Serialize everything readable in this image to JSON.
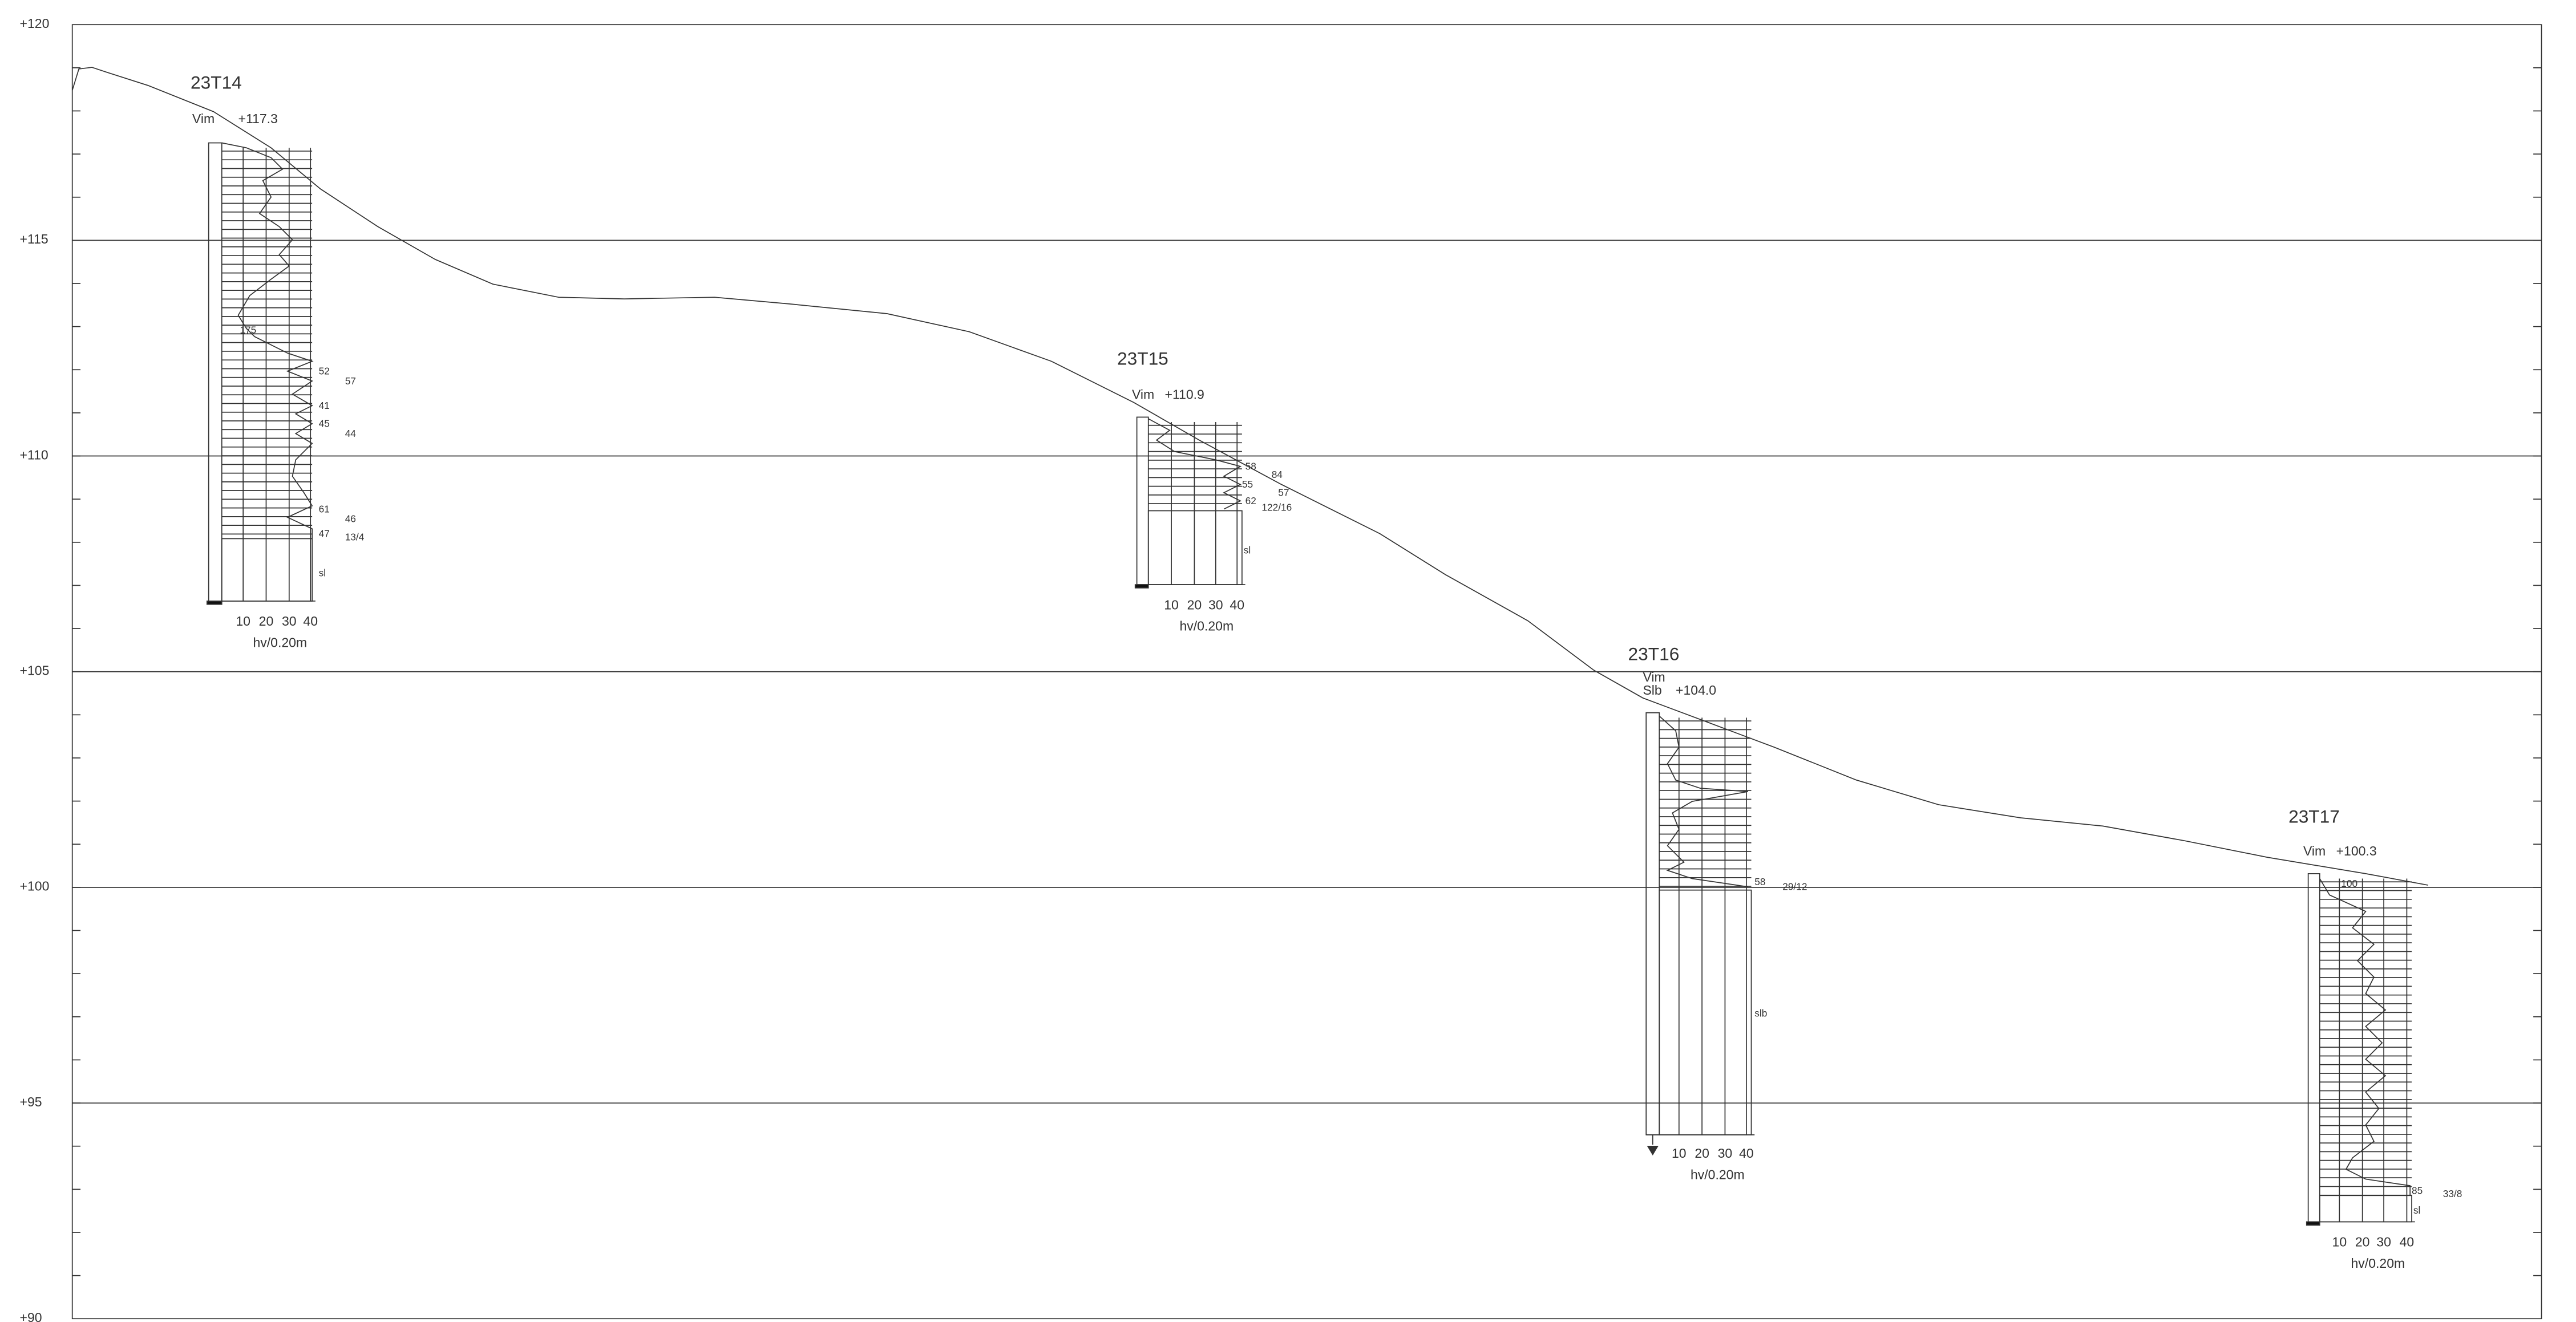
{
  "axis": {
    "labels": [
      "+120",
      "+115",
      "+110",
      "+105",
      "+100",
      "+95",
      "+90"
    ]
  },
  "boreholes": [
    {
      "name": "23T14",
      "method": [
        "Vim"
      ],
      "elevation": "+117.3",
      "notes": [
        "175",
        "52",
        "57",
        "41",
        "45",
        "44",
        "61",
        "46",
        "47",
        "13/4",
        "sl"
      ],
      "scale": [
        "10",
        "20",
        "30",
        "40"
      ],
      "unit": "hv/0.20m"
    },
    {
      "name": "23T15",
      "method": [
        "Vim"
      ],
      "elevation": "+110.9",
      "notes": [
        "58",
        "84",
        "55",
        "57",
        "62",
        "122/16",
        "sl"
      ],
      "scale": [
        "10",
        "20",
        "30",
        "40"
      ],
      "unit": "hv/0.20m"
    },
    {
      "name": "23T16",
      "method": [
        "Vim",
        "Slb"
      ],
      "elevation": "+104.0",
      "notes": [
        "58",
        "29/12",
        "slb"
      ],
      "scale": [
        "10",
        "20",
        "30",
        "40"
      ],
      "unit": "hv/0.20m"
    },
    {
      "name": "23T17",
      "method": [
        "Vim"
      ],
      "elevation": "+100.3",
      "notes": [
        "100",
        "85",
        "33/8",
        "sl"
      ],
      "scale": [
        "10",
        "20",
        "30",
        "40"
      ],
      "unit": "hv/0.20m"
    }
  ]
}
